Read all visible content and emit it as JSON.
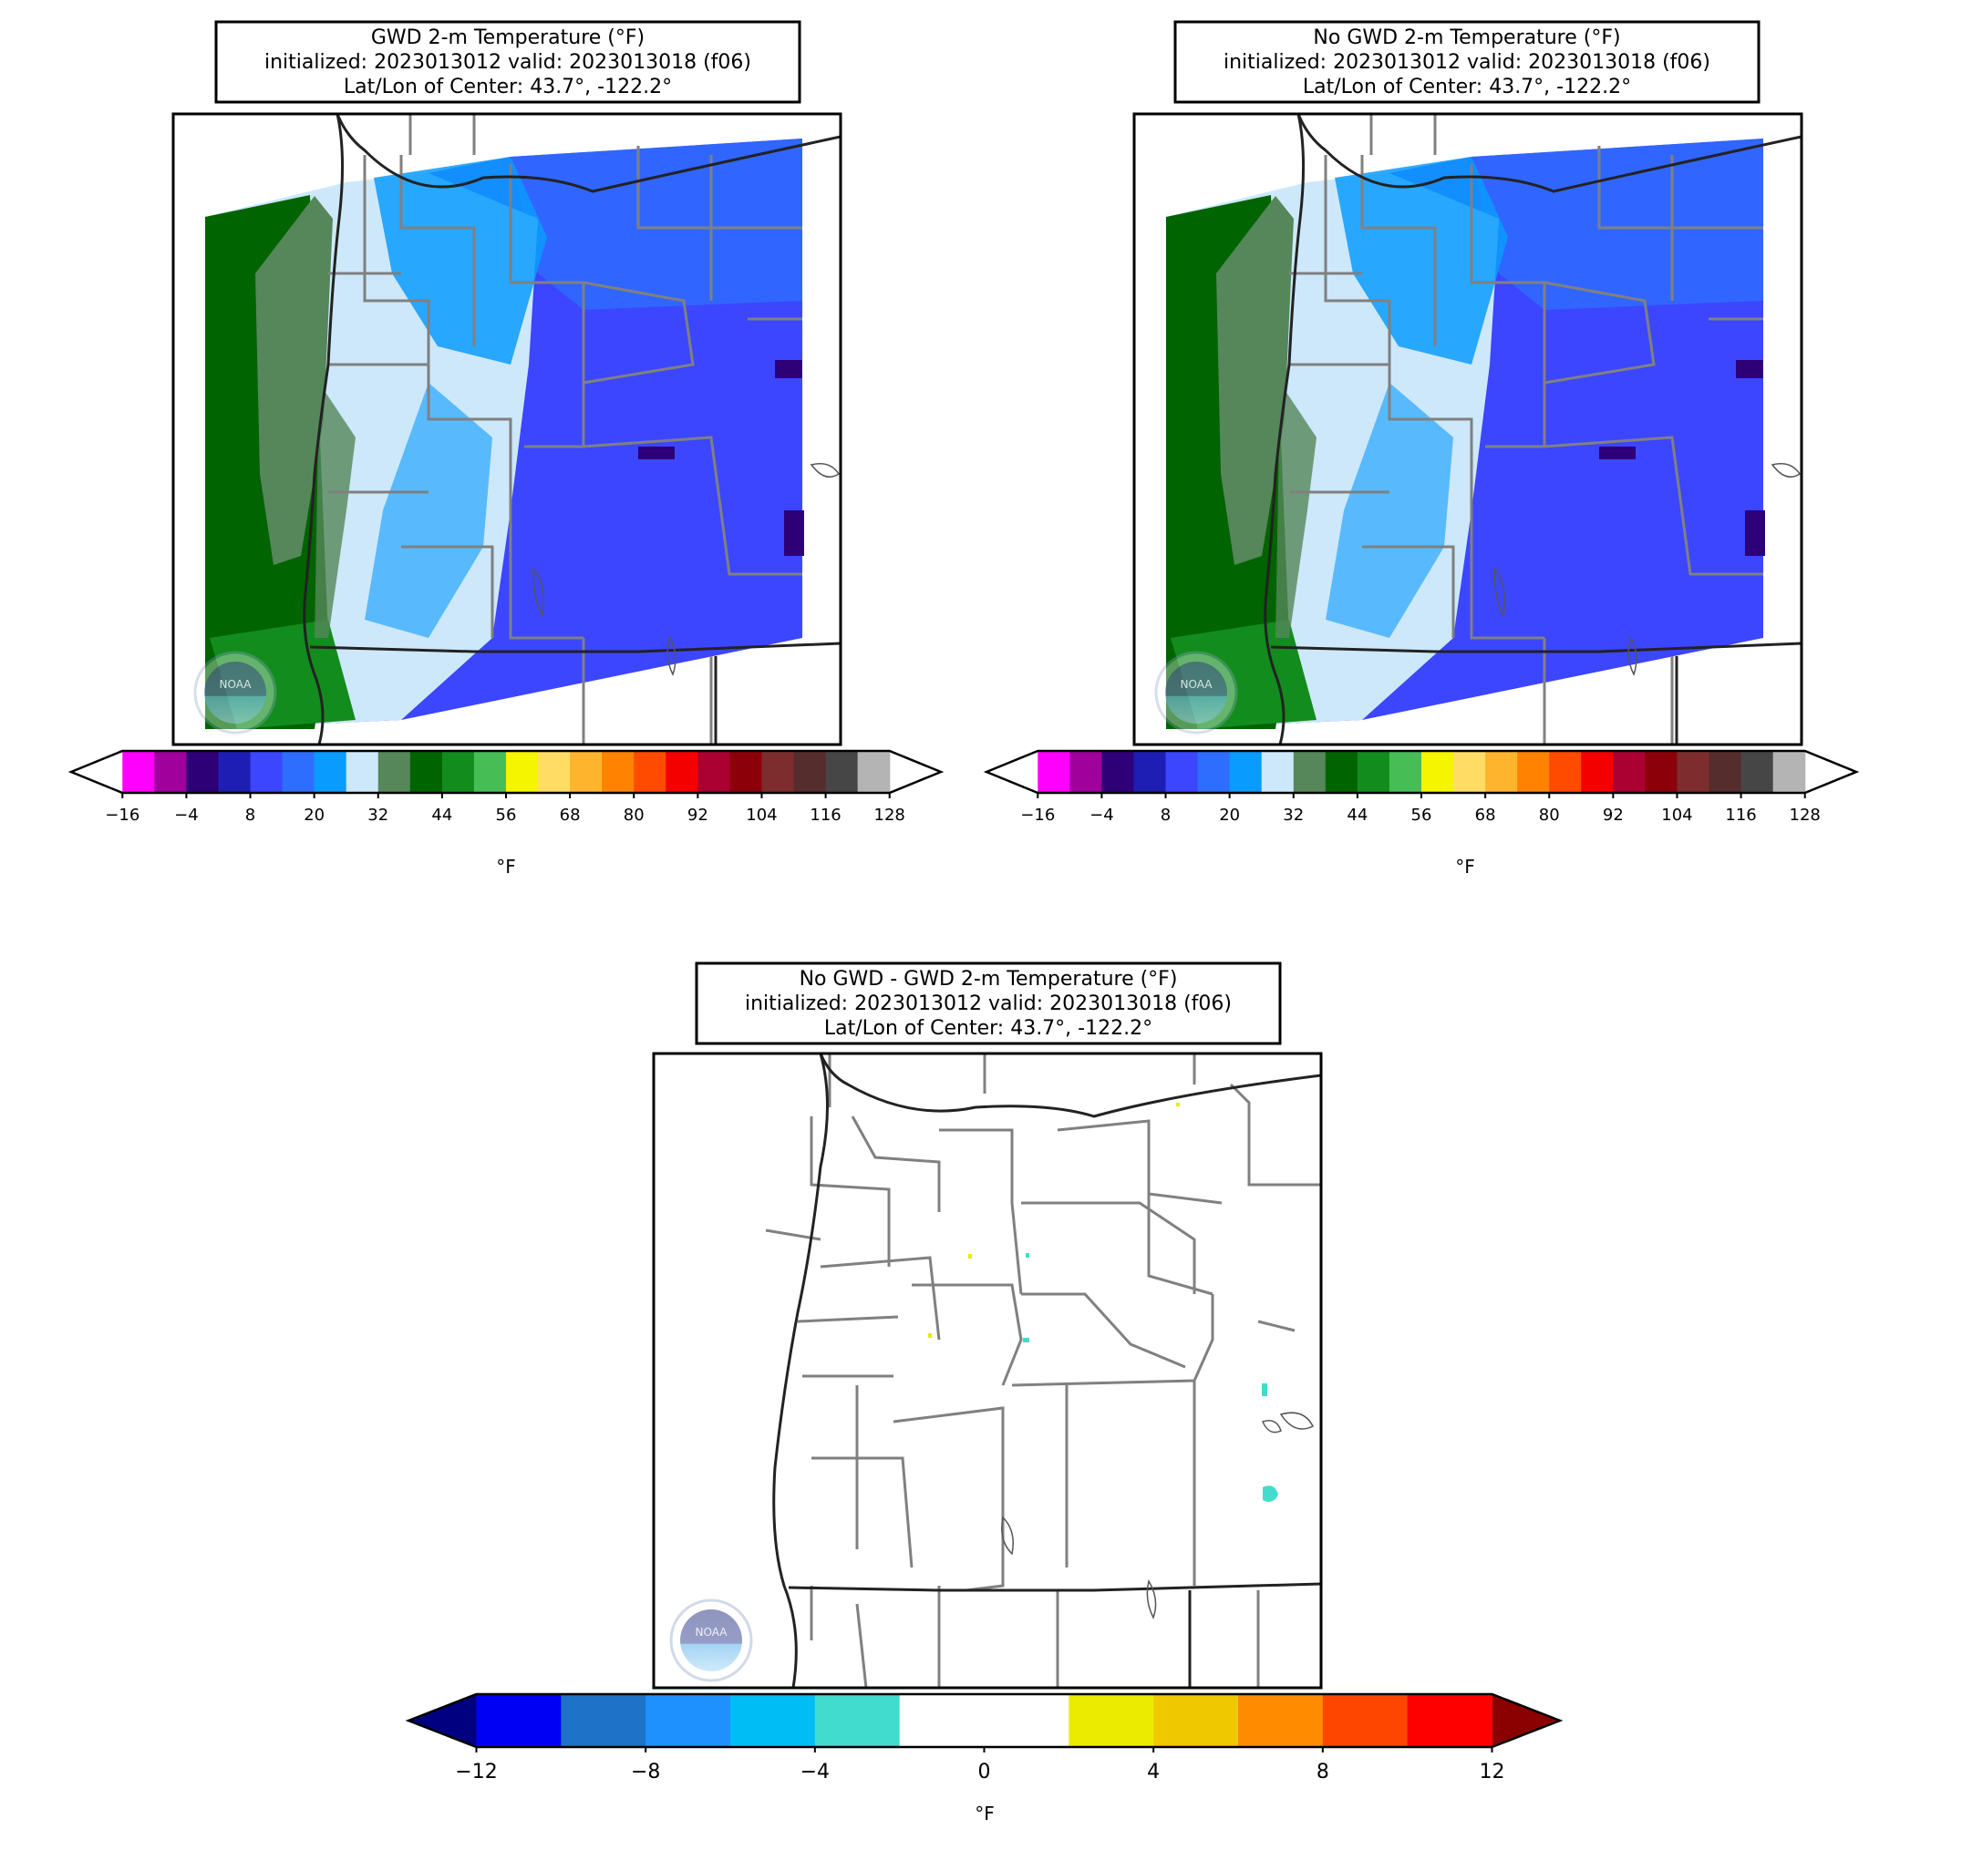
{
  "panels": [
    {
      "id": "gwd",
      "title_lines": [
        "GWD 2-m Temperature (°F)",
        "initialized: 2023013012 valid: 2023013018 (f06)",
        "Lat/Lon of Center: 43.7°, -122.2°"
      ],
      "colorbar_unit": "°F",
      "colorbar_ticks": [
        "−16",
        "−4",
        "8",
        "20",
        "32",
        "44",
        "56",
        "68",
        "80",
        "92",
        "104",
        "116",
        "128"
      ]
    },
    {
      "id": "nogwd",
      "title_lines": [
        "No GWD 2-m Temperature (°F)",
        "initialized: 2023013012 valid: 2023013018 (f06)",
        "Lat/Lon of Center: 43.7°, -122.2°"
      ],
      "colorbar_unit": "°F",
      "colorbar_ticks": [
        "−16",
        "−4",
        "8",
        "20",
        "32",
        "44",
        "56",
        "68",
        "80",
        "92",
        "104",
        "116",
        "128"
      ]
    },
    {
      "id": "diff",
      "title_lines": [
        "No GWD - GWD 2-m Temperature (°F)",
        "initialized: 2023013012 valid: 2023013018 (f06)",
        "Lat/Lon of Center: 43.7°, -122.2°"
      ],
      "colorbar_unit": "°F",
      "colorbar_ticks": [
        "−12",
        "−8",
        "−4",
        "0",
        "4",
        "8",
        "12"
      ]
    }
  ],
  "temp_colors": [
    "#ff00ff",
    "#a0009b",
    "#2e0078",
    "#1e1eb4",
    "#3c46ff",
    "#2d6eff",
    "#0a9bff",
    "#cde8fa",
    "#55875a",
    "#006400",
    "#138c1e",
    "#46be55",
    "#f5f500",
    "#ffdc64",
    "#ffb42d",
    "#ff8200",
    "#ff4b00",
    "#f50000",
    "#aa0032",
    "#8c000a",
    "#7d2d2d",
    "#552d2d",
    "#464646",
    "#b4b4b4"
  ],
  "diff_colors": [
    "#0000f5",
    "#1e73c8",
    "#1e91ff",
    "#00bef5",
    "#41dccd",
    "#ffffff",
    "#ffffff",
    "#ebeb00",
    "#f0c800",
    "#ff8c00",
    "#ff4600",
    "#ff0000"
  ],
  "diff_extend_colors": {
    "low": "#000080",
    "high": "#8b0000"
  },
  "logo_text": "NOAA"
}
